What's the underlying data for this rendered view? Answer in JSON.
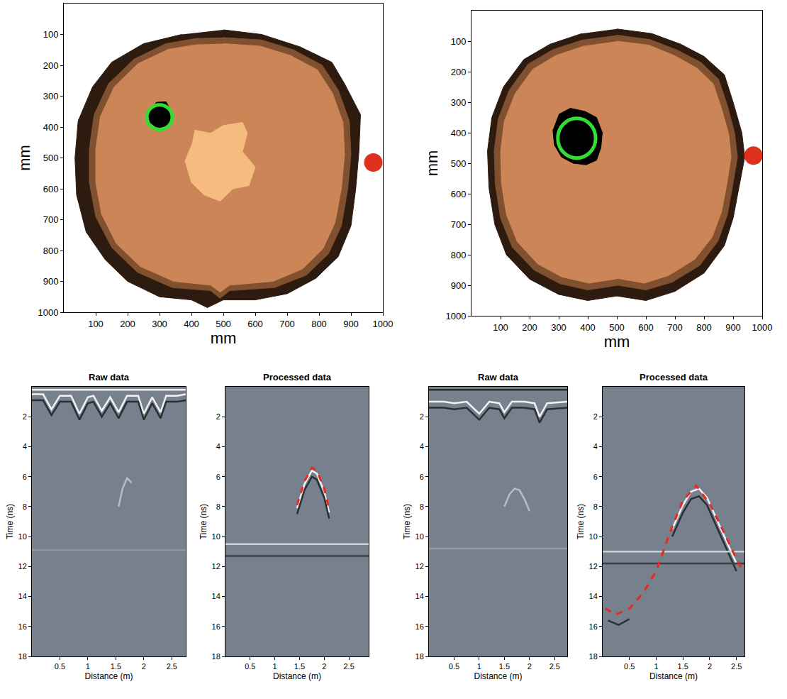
{
  "chart_data": [
    {
      "type": "shapes",
      "xlabel": "mm",
      "ylabel": "mm",
      "xlim": [
        0,
        1000
      ],
      "ylim": [
        1000,
        0
      ],
      "xticks": [
        100,
        200,
        300,
        400,
        500,
        600,
        700,
        800,
        900,
        1000
      ],
      "yticks": [
        100,
        200,
        300,
        400,
        500,
        600,
        700,
        800,
        900,
        1000
      ],
      "grid": false,
      "regions": [
        {
          "color": "#2e1b10",
          "x": [
            500,
            620,
            740,
            840,
            880,
            930,
            925,
            915,
            900,
            860,
            790,
            700,
            600,
            500,
            450,
            400,
            300,
            200,
            130,
            70,
            40,
            35,
            45,
            90,
            150,
            250,
            370
          ],
          "y": [
            85,
            100,
            140,
            190,
            260,
            360,
            480,
            600,
            720,
            820,
            890,
            940,
            960,
            960,
            985,
            960,
            950,
            900,
            830,
            740,
            620,
            500,
            380,
            270,
            190,
            130,
            100
          ]
        },
        {
          "color": "#80502f",
          "x": [
            500,
            620,
            720,
            810,
            860,
            895,
            900,
            890,
            870,
            830,
            760,
            660,
            520,
            490,
            460,
            340,
            230,
            150,
            100,
            80,
            80,
            95,
            140,
            220,
            320,
            420
          ],
          "y": [
            110,
            118,
            150,
            200,
            280,
            380,
            490,
            600,
            720,
            810,
            880,
            920,
            930,
            955,
            930,
            920,
            870,
            790,
            690,
            580,
            470,
            360,
            260,
            180,
            130,
            112
          ]
        },
        {
          "color": "#cc8556",
          "x": [
            500,
            615,
            710,
            795,
            842,
            875,
            880,
            870,
            850,
            812,
            748,
            655,
            520,
            490,
            460,
            345,
            240,
            165,
            118,
            100,
            100,
            115,
            158,
            232,
            328,
            425
          ],
          "y": [
            130,
            138,
            168,
            215,
            290,
            385,
            490,
            600,
            710,
            795,
            860,
            900,
            912,
            935,
            912,
            900,
            852,
            778,
            682,
            578,
            472,
            365,
            270,
            195,
            148,
            132
          ]
        },
        {
          "color": "#f6bb7e",
          "x": [
            410,
            460,
            500,
            560,
            575,
            560,
            600,
            580,
            530,
            490,
            440,
            400,
            380,
            400
          ],
          "y": [
            410,
            420,
            395,
            385,
            420,
            480,
            530,
            590,
            600,
            640,
            620,
            580,
            510,
            460
          ]
        },
        {
          "color": "#000000",
          "x": [
            275,
            290,
            320,
            335,
            340,
            325,
            295,
            270,
            265
          ],
          "y": [
            340,
            320,
            318,
            345,
            380,
            405,
            405,
            385,
            360
          ]
        }
      ],
      "circles": [
        {
          "x": 300,
          "y": 368,
          "r": 40,
          "color": "#33dd33"
        }
      ],
      "points": [
        {
          "x": 970,
          "y": 515,
          "color": "#e0301e"
        }
      ]
    },
    {
      "type": "shapes",
      "xlabel": "mm",
      "ylabel": "mm",
      "xlim": [
        0,
        1000
      ],
      "ylim": [
        1000,
        0
      ],
      "xticks": [
        100,
        200,
        300,
        400,
        500,
        600,
        700,
        800,
        900,
        1000
      ],
      "yticks": [
        100,
        200,
        300,
        400,
        500,
        600,
        700,
        800,
        900,
        1000
      ],
      "grid": false,
      "regions": [
        {
          "color": "#2e1b10",
          "x": [
            500,
            620,
            720,
            800,
            870,
            900,
            930,
            940,
            920,
            900,
            870,
            800,
            700,
            600,
            500,
            400,
            300,
            200,
            120,
            80,
            60,
            55,
            70,
            110,
            180,
            270,
            380
          ],
          "y": [
            60,
            75,
            110,
            150,
            210,
            300,
            400,
            480,
            580,
            680,
            770,
            860,
            920,
            950,
            935,
            950,
            930,
            880,
            800,
            700,
            580,
            460,
            350,
            250,
            160,
            110,
            75
          ]
        },
        {
          "color": "#80502f",
          "x": [
            500,
            615,
            710,
            790,
            850,
            880,
            905,
            915,
            898,
            880,
            848,
            785,
            690,
            600,
            505,
            400,
            305,
            215,
            140,
            100,
            82,
            78,
            92,
            130,
            195,
            280,
            385
          ],
          "y": [
            80,
            95,
            130,
            170,
            225,
            310,
            400,
            480,
            575,
            670,
            755,
            835,
            890,
            915,
            900,
            915,
            895,
            850,
            775,
            680,
            570,
            460,
            355,
            260,
            175,
            128,
            95
          ]
        },
        {
          "color": "#cc8556",
          "x": [
            500,
            610,
            700,
            775,
            832,
            860,
            885,
            893,
            878,
            860,
            828,
            768,
            678,
            595,
            505,
            405,
            312,
            228,
            158,
            120,
            103,
            100,
            113,
            150,
            210,
            290,
            390
          ],
          "y": [
            100,
            113,
            148,
            188,
            240,
            320,
            405,
            480,
            570,
            660,
            742,
            815,
            868,
            893,
            878,
            893,
            873,
            830,
            758,
            668,
            565,
            462,
            362,
            272,
            193,
            147,
            115
          ]
        },
        {
          "color": "#000000",
          "x": [
            300,
            340,
            390,
            430,
            450,
            445,
            430,
            395,
            350,
            310,
            285,
            280
          ],
          "y": [
            340,
            320,
            330,
            350,
            400,
            450,
            490,
            505,
            500,
            480,
            440,
            390
          ]
        }
      ],
      "circles": [
        {
          "x": 362,
          "y": 418,
          "r": 65,
          "color": "#33dd33"
        }
      ],
      "points": [
        {
          "x": 970,
          "y": 475,
          "color": "#e0301e"
        }
      ]
    },
    {
      "type": "line",
      "title": "Raw data",
      "xlabel": "Distance (m)",
      "ylabel": "Time (ns)",
      "xlim": [
        0,
        2.75
      ],
      "ylim": [
        18,
        0
      ],
      "xticks": [
        0.5,
        1,
        1.5,
        2,
        2.5
      ],
      "yticks": [
        2,
        4,
        6,
        8,
        10,
        12,
        14,
        16,
        18
      ],
      "grid": false,
      "series": [
        {
          "color": "#f2f2f2",
          "line_style": "solid",
          "x": [
            0,
            2.75
          ],
          "values": [
            0.2,
            0.2
          ]
        },
        {
          "color": "#f2f2f2",
          "line_style": "solid",
          "x": [
            0,
            0.2,
            0.35,
            0.5,
            0.7,
            0.85,
            1.0,
            1.1,
            1.25,
            1.4,
            1.55,
            1.7,
            1.9,
            2.0,
            2.15,
            2.3,
            2.4,
            2.6,
            2.75
          ],
          "values": [
            0.5,
            0.5,
            1.5,
            0.6,
            0.6,
            1.8,
            0.7,
            0.6,
            1.6,
            0.7,
            1.7,
            0.6,
            0.6,
            1.8,
            0.7,
            1.7,
            0.6,
            0.6,
            0.5
          ]
        },
        {
          "color": "#2a2f36",
          "line_style": "solid",
          "x": [
            0,
            0.2,
            0.35,
            0.5,
            0.7,
            0.85,
            1.0,
            1.1,
            1.25,
            1.4,
            1.55,
            1.7,
            1.9,
            2.0,
            2.15,
            2.3,
            2.4,
            2.6,
            2.75
          ],
          "values": [
            0.9,
            0.9,
            1.9,
            1.0,
            1.0,
            2.2,
            1.1,
            1.0,
            2.0,
            1.1,
            2.1,
            1.0,
            1.0,
            2.2,
            1.1,
            2.1,
            1.0,
            1.0,
            0.9
          ]
        },
        {
          "color": "#b5bec7",
          "line_style": "solid",
          "x": [
            1.55,
            1.62,
            1.7,
            1.78
          ],
          "values": [
            8.0,
            6.8,
            6.1,
            6.4
          ]
        },
        {
          "color": "#8e99a4",
          "line_style": "solid",
          "x": [
            0,
            2.75
          ],
          "values": [
            10.9,
            10.9
          ]
        }
      ]
    },
    {
      "type": "line",
      "title": "Processed data",
      "xlabel": "Distance (m)",
      "ylabel": "Time (ns)",
      "xlim": [
        0,
        2.9
      ],
      "ylim": [
        18,
        0
      ],
      "xticks": [
        0.5,
        1,
        1.5,
        2,
        2.5
      ],
      "yticks": [
        2,
        4,
        6,
        8,
        10,
        12,
        14,
        16,
        18
      ],
      "grid": false,
      "series": [
        {
          "color": "#f2f2f2",
          "line_style": "solid",
          "x": [
            1.45,
            1.6,
            1.75,
            1.85,
            2.0,
            2.1
          ],
          "values": [
            8.1,
            6.5,
            5.6,
            5.8,
            7.0,
            8.4
          ]
        },
        {
          "color": "#2a2f36",
          "line_style": "solid",
          "x": [
            1.45,
            1.6,
            1.75,
            1.85,
            2.0,
            2.1
          ],
          "values": [
            8.5,
            6.9,
            6.0,
            6.2,
            7.4,
            8.8
          ]
        },
        {
          "color": "#c9d0d6",
          "line_style": "solid",
          "x": [
            0,
            2.9
          ],
          "values": [
            10.5,
            10.5
          ]
        },
        {
          "color": "#3a4048",
          "line_style": "solid",
          "x": [
            0,
            2.9
          ],
          "values": [
            11.3,
            11.3
          ]
        },
        {
          "color": "#e8281e",
          "line_style": "dash",
          "x": [
            1.45,
            1.6,
            1.75,
            1.85,
            2.0,
            2.1
          ],
          "values": [
            7.9,
            6.3,
            5.4,
            5.6,
            6.8,
            8.2
          ]
        }
      ]
    },
    {
      "type": "line",
      "title": "Raw data",
      "xlabel": "Distance (m)",
      "ylabel": "Time (ns)",
      "xlim": [
        0,
        2.75
      ],
      "ylim": [
        18,
        0
      ],
      "xticks": [
        0.5,
        1,
        1.5,
        2,
        2.5
      ],
      "yticks": [
        2,
        4,
        6,
        8,
        10,
        12,
        14,
        16,
        18
      ],
      "grid": false,
      "series": [
        {
          "color": "#2a2f36",
          "line_style": "solid",
          "x": [
            0,
            2.75
          ],
          "values": [
            0.2,
            0.2
          ]
        },
        {
          "color": "#f2f2f2",
          "line_style": "solid",
          "x": [
            0,
            0.3,
            0.5,
            0.75,
            1.0,
            1.2,
            1.4,
            1.5,
            1.65,
            1.9,
            2.1,
            2.2,
            2.35,
            2.75
          ],
          "values": [
            1.0,
            1.0,
            1.1,
            1.0,
            1.8,
            1.0,
            1.1,
            1.7,
            1.0,
            1.0,
            1.1,
            2.0,
            1.1,
            1.0
          ]
        },
        {
          "color": "#2a2f36",
          "line_style": "solid",
          "x": [
            0,
            0.3,
            0.5,
            0.75,
            1.0,
            1.2,
            1.4,
            1.5,
            1.65,
            1.9,
            2.1,
            2.2,
            2.35,
            2.75
          ],
          "values": [
            1.4,
            1.4,
            1.5,
            1.4,
            2.2,
            1.4,
            1.5,
            2.1,
            1.4,
            1.4,
            1.5,
            2.4,
            1.5,
            1.4
          ]
        },
        {
          "color": "#b5bec7",
          "line_style": "solid",
          "x": [
            1.5,
            1.6,
            1.7,
            1.8,
            1.9,
            2.0
          ],
          "values": [
            8.0,
            7.2,
            6.8,
            6.9,
            7.5,
            8.3
          ]
        },
        {
          "color": "#8e99a4",
          "line_style": "solid",
          "x": [
            0,
            2.75
          ],
          "values": [
            10.8,
            10.8
          ]
        }
      ]
    },
    {
      "type": "line",
      "title": "Processed data",
      "xlabel": "Distance (m)",
      "ylabel": "Time (ns)",
      "xlim": [
        0,
        2.65
      ],
      "ylim": [
        18,
        0
      ],
      "xticks": [
        0.5,
        1,
        1.5,
        2,
        2.5
      ],
      "yticks": [
        2,
        4,
        6,
        8,
        10,
        12,
        14,
        16,
        18
      ],
      "grid": false,
      "series": [
        {
          "color": "#f2f2f2",
          "line_style": "solid",
          "x": [
            1.3,
            1.5,
            1.65,
            1.8,
            1.95,
            2.1,
            2.3,
            2.5
          ],
          "values": [
            9.5,
            7.9,
            7.0,
            6.8,
            7.4,
            8.6,
            10.2,
            11.8
          ]
        },
        {
          "color": "#2a2f36",
          "line_style": "solid",
          "x": [
            1.3,
            1.5,
            1.65,
            1.8,
            1.95,
            2.1,
            2.3,
            2.5
          ],
          "values": [
            10.0,
            8.4,
            7.5,
            7.3,
            7.9,
            9.1,
            10.7,
            12.3
          ]
        },
        {
          "color": "#2a2f36",
          "line_style": "solid",
          "x": [
            0.1,
            0.3,
            0.5
          ],
          "values": [
            15.6,
            15.9,
            15.5
          ]
        },
        {
          "color": "#c9d0d6",
          "line_style": "solid",
          "x": [
            0,
            2.65
          ],
          "values": [
            11.0,
            11.0
          ]
        },
        {
          "color": "#3a4048",
          "line_style": "solid",
          "x": [
            0,
            2.65
          ],
          "values": [
            11.8,
            11.8
          ]
        },
        {
          "color": "#e8281e",
          "line_style": "dash",
          "x": [
            0.05,
            0.25,
            0.5,
            0.75,
            1.0,
            1.25,
            1.5,
            1.75,
            2.0,
            2.25,
            2.5,
            2.6
          ],
          "values": [
            14.8,
            15.2,
            14.8,
            13.8,
            12.3,
            9.8,
            7.6,
            6.6,
            7.8,
            9.6,
            11.5,
            12.2
          ]
        }
      ]
    }
  ]
}
